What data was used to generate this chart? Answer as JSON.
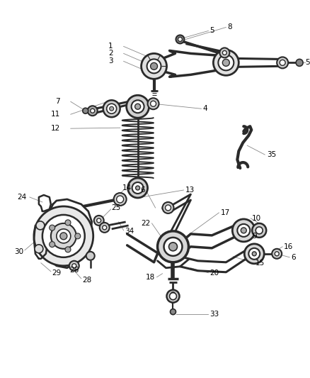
{
  "background_color": "#ffffff",
  "line_color": "#2a2a2a",
  "label_color": "#000000",
  "label_fontsize": 7.5,
  "leader_line_color": "#888888",
  "figsize": [
    4.38,
    5.33
  ],
  "dpi": 100
}
